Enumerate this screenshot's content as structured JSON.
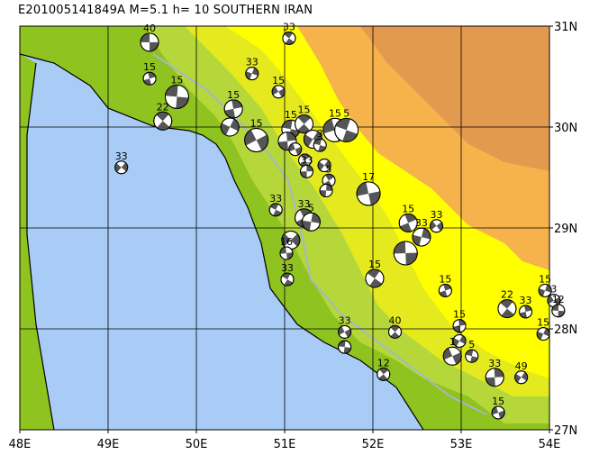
{
  "title": "E201005141849A  M=5.1  h= 10  SOUTHERN IRAN",
  "colors": {
    "sea": "#a8ccf6",
    "lowland": "#8fc31f",
    "plain": "#b5d739",
    "foothill": "#e5ea1f",
    "yellow": "#ffff00",
    "mountain": "#f6b24b",
    "highland": "#e39a4f",
    "fault": "#a7b7c8",
    "coast": "#000000"
  },
  "lon_ticks": [
    "48E",
    "49E",
    "50E",
    "51E",
    "52E",
    "53E",
    "54E"
  ],
  "lat_ticks": [
    "31N",
    "30N",
    "29N",
    "28N",
    "27N"
  ],
  "map_extent": {
    "lon": [
      48,
      54
    ],
    "lat": [
      27,
      31
    ]
  },
  "mechanisms": [
    {
      "lon": 49.47,
      "lat": 30.84,
      "depth": "40",
      "size": "medium"
    },
    {
      "lon": 51.05,
      "lat": 30.88,
      "depth": "33",
      "size": "small"
    },
    {
      "lon": 49.47,
      "lat": 30.48,
      "depth": "15",
      "size": "small"
    },
    {
      "lon": 50.63,
      "lat": 30.53,
      "depth": "33",
      "size": "small"
    },
    {
      "lon": 50.93,
      "lat": 30.35,
      "depth": "15",
      "size": "small"
    },
    {
      "lon": 49.78,
      "lat": 30.3,
      "depth": "15",
      "size": "large"
    },
    {
      "lon": 49.62,
      "lat": 30.06,
      "depth": "22",
      "size": "medium"
    },
    {
      "lon": 50.42,
      "lat": 30.18,
      "depth": "15",
      "size": "medium"
    },
    {
      "lon": 50.38,
      "lat": 30.0,
      "depth": "",
      "size": "medium"
    },
    {
      "lon": 50.68,
      "lat": 29.87,
      "depth": "15",
      "size": "large"
    },
    {
      "lon": 51.07,
      "lat": 29.98,
      "depth": "15",
      "size": "medium"
    },
    {
      "lon": 51.22,
      "lat": 30.03,
      "depth": "15",
      "size": "medium"
    },
    {
      "lon": 51.03,
      "lat": 29.86,
      "depth": "",
      "size": "medium"
    },
    {
      "lon": 51.32,
      "lat": 29.88,
      "depth": "",
      "size": "medium"
    },
    {
      "lon": 51.12,
      "lat": 29.78,
      "depth": "",
      "size": "small"
    },
    {
      "lon": 51.4,
      "lat": 29.82,
      "depth": "3",
      "size": "small"
    },
    {
      "lon": 51.23,
      "lat": 29.67,
      "depth": "",
      "size": "small"
    },
    {
      "lon": 51.25,
      "lat": 29.56,
      "depth": "33",
      "size": "small"
    },
    {
      "lon": 51.45,
      "lat": 29.62,
      "depth": "",
      "size": "small"
    },
    {
      "lon": 51.57,
      "lat": 29.97,
      "depth": "15",
      "size": "large"
    },
    {
      "lon": 51.7,
      "lat": 29.97,
      "depth": "5",
      "size": "large"
    },
    {
      "lon": 51.5,
      "lat": 29.47,
      "depth": "5",
      "size": "small"
    },
    {
      "lon": 51.47,
      "lat": 29.37,
      "depth": "",
      "size": "small"
    },
    {
      "lon": 49.15,
      "lat": 29.6,
      "depth": "33",
      "size": "small"
    },
    {
      "lon": 51.95,
      "lat": 29.34,
      "depth": "17",
      "size": "large"
    },
    {
      "lon": 50.9,
      "lat": 29.18,
      "depth": "33",
      "size": "small"
    },
    {
      "lon": 51.22,
      "lat": 29.1,
      "depth": "33",
      "size": "medium"
    },
    {
      "lon": 51.3,
      "lat": 29.06,
      "depth": "5",
      "size": "medium"
    },
    {
      "lon": 51.07,
      "lat": 28.88,
      "depth": "",
      "size": "medium"
    },
    {
      "lon": 51.02,
      "lat": 28.75,
      "depth": "16",
      "size": "small"
    },
    {
      "lon": 51.03,
      "lat": 28.49,
      "depth": "33",
      "size": "small"
    },
    {
      "lon": 52.4,
      "lat": 29.05,
      "depth": "15",
      "size": "medium"
    },
    {
      "lon": 52.55,
      "lat": 28.91,
      "depth": "33",
      "size": "medium"
    },
    {
      "lon": 52.72,
      "lat": 29.02,
      "depth": "33",
      "size": "small"
    },
    {
      "lon": 52.37,
      "lat": 28.75,
      "depth": "",
      "size": "large"
    },
    {
      "lon": 52.02,
      "lat": 28.5,
      "depth": "15",
      "size": "medium"
    },
    {
      "lon": 52.82,
      "lat": 28.38,
      "depth": "15",
      "size": "small"
    },
    {
      "lon": 53.95,
      "lat": 28.38,
      "depth": "15",
      "size": "small"
    },
    {
      "lon": 54.05,
      "lat": 28.28,
      "depth": "3",
      "size": "small"
    },
    {
      "lon": 54.1,
      "lat": 28.18,
      "depth": "12",
      "size": "small"
    },
    {
      "lon": 53.52,
      "lat": 28.2,
      "depth": "22",
      "size": "medium"
    },
    {
      "lon": 53.73,
      "lat": 28.17,
      "depth": "33",
      "size": "small"
    },
    {
      "lon": 53.93,
      "lat": 27.95,
      "depth": "15",
      "size": "small"
    },
    {
      "lon": 51.68,
      "lat": 27.97,
      "depth": "33",
      "size": "small"
    },
    {
      "lon": 51.68,
      "lat": 27.82,
      "depth": "",
      "size": "small"
    },
    {
      "lon": 52.25,
      "lat": 27.97,
      "depth": "40",
      "size": "small"
    },
    {
      "lon": 52.98,
      "lat": 28.03,
      "depth": "15",
      "size": "small"
    },
    {
      "lon": 52.98,
      "lat": 27.88,
      "depth": "1",
      "size": "small"
    },
    {
      "lon": 52.9,
      "lat": 27.73,
      "depth": "1",
      "size": "medium"
    },
    {
      "lon": 53.12,
      "lat": 27.73,
      "depth": "5",
      "size": "small"
    },
    {
      "lon": 52.12,
      "lat": 27.55,
      "depth": "12",
      "size": "small"
    },
    {
      "lon": 53.38,
      "lat": 27.52,
      "depth": "33",
      "size": "medium"
    },
    {
      "lon": 53.68,
      "lat": 27.52,
      "depth": "49",
      "size": "small"
    },
    {
      "lon": 53.42,
      "lat": 27.17,
      "depth": "15",
      "size": "small"
    }
  ]
}
